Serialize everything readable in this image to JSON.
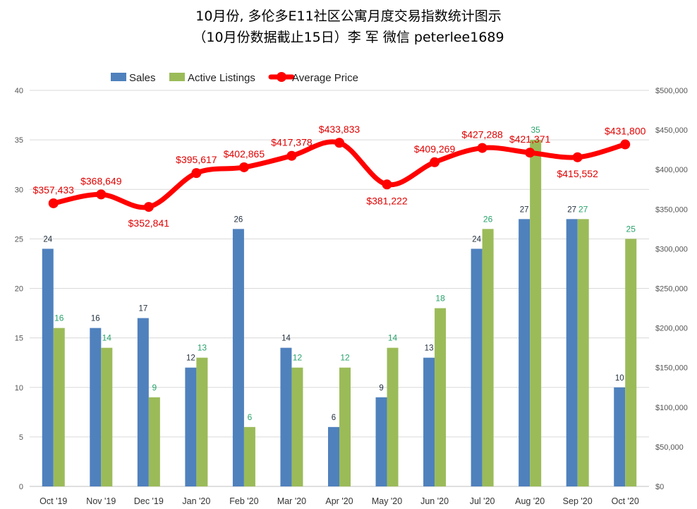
{
  "title_line1": "10月份, 多伦多E11社区公寓月度交易指数统计图示",
  "title_line2": "（10月份数据截止15日）李 军  微信  peterlee1689",
  "chart_data": {
    "type": "bar",
    "categories": [
      "Oct '19",
      "Nov '19",
      "Dec '19",
      "Jan '20",
      "Feb '20",
      "Mar '20",
      "Apr '20",
      "May '20",
      "Jun '20",
      "Jul '20",
      "Aug '20",
      "Sep '20",
      "Oct '20"
    ],
    "series": [
      {
        "name": "Sales",
        "type": "bar",
        "axis": "left",
        "color": "#4f81bd",
        "values": [
          24,
          16,
          17,
          12,
          26,
          14,
          6,
          9,
          13,
          24,
          27,
          27,
          10
        ]
      },
      {
        "name": "Active Listings",
        "type": "bar",
        "axis": "left",
        "color": "#9bbb59",
        "values": [
          16,
          14,
          9,
          13,
          6,
          12,
          12,
          14,
          18,
          26,
          35,
          27,
          25
        ]
      },
      {
        "name": "Average Price",
        "type": "line",
        "axis": "right",
        "color": "#ff0000",
        "values": [
          357433,
          368649,
          352841,
          395617,
          402865,
          417378,
          433833,
          381222,
          409269,
          427288,
          421371,
          415552,
          431800
        ],
        "labels": [
          "$357,433",
          "$368,649",
          "$352,841",
          "$395,617",
          "$402,865",
          "$417,378",
          "$433,833",
          "$381,222",
          "$409,269",
          "$427,288",
          "$421,371",
          "$415,552",
          "$431,800"
        ]
      }
    ],
    "y_left": {
      "range": [
        0,
        40
      ],
      "ticks": [
        "0",
        "5",
        "10",
        "15",
        "20",
        "25",
        "30",
        "35",
        "40"
      ]
    },
    "y_right": {
      "range": [
        0,
        500000
      ],
      "ticks": [
        "$0",
        "$50,000",
        "$100,000",
        "$150,000",
        "$200,000",
        "$250,000",
        "$300,000",
        "$350,000",
        "$400,000",
        "$450,000",
        "$500,000"
      ]
    },
    "grid": true,
    "legend_position": "top-left"
  }
}
